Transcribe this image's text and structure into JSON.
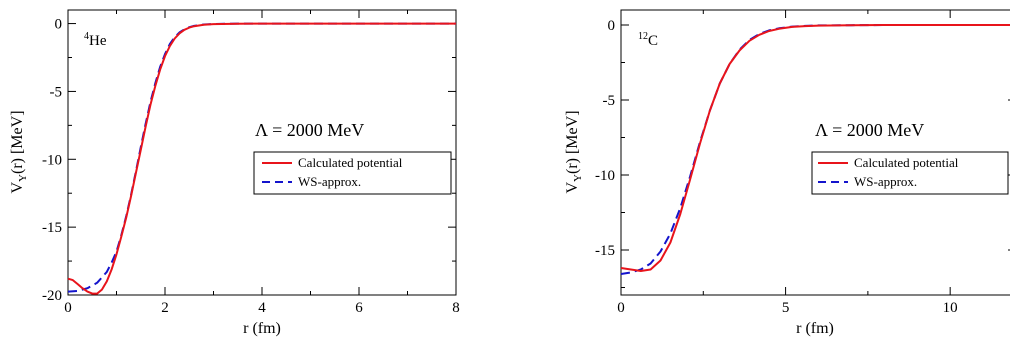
{
  "chart_data": [
    {
      "type": "line",
      "nucleus_mass": "4",
      "nucleus_symbol": "He",
      "annotation": "Λ = 2000 MeV",
      "xlabel": "r (fm)",
      "ylabel_parts": {
        "base": "V",
        "sub": "Y",
        "rest": "(r)  [MeV]"
      },
      "xlim": [
        0,
        8
      ],
      "ylim": [
        -20,
        1
      ],
      "xticks": [
        0,
        2,
        4,
        6,
        8
      ],
      "yticks": [
        0,
        -5,
        -10,
        -15,
        -20
      ],
      "legend_position": "center-right",
      "series": [
        {
          "name": "Calculated potential",
          "color": "#e8141b",
          "dash": "solid",
          "x": [
            0,
            0.1,
            0.2,
            0.3,
            0.4,
            0.5,
            0.6,
            0.7,
            0.8,
            0.9,
            1.0,
            1.1,
            1.2,
            1.3,
            1.4,
            1.5,
            1.6,
            1.7,
            1.8,
            1.9,
            2.0,
            2.1,
            2.2,
            2.3,
            2.4,
            2.5,
            2.6,
            2.8,
            3.0,
            3.5,
            4.0,
            5.0,
            6.0,
            7.0,
            8.0
          ],
          "y": [
            -18.8,
            -18.9,
            -19.2,
            -19.5,
            -19.75,
            -19.9,
            -19.9,
            -19.6,
            -19.0,
            -18.1,
            -17.0,
            -15.7,
            -14.3,
            -12.7,
            -11.0,
            -9.3,
            -7.6,
            -6.0,
            -4.6,
            -3.4,
            -2.4,
            -1.65,
            -1.1,
            -0.72,
            -0.46,
            -0.3,
            -0.19,
            -0.08,
            -0.04,
            -0.01,
            0,
            0,
            0,
            0,
            0
          ]
        },
        {
          "name": "WS-approx.",
          "color": "#1414cc",
          "dash": "dashed",
          "x": [
            0,
            0.2,
            0.4,
            0.6,
            0.8,
            0.9,
            1.0,
            1.1,
            1.2,
            1.3,
            1.4,
            1.5,
            1.6,
            1.7,
            1.8,
            1.9,
            2.0,
            2.1,
            2.2,
            2.3,
            2.4,
            2.5,
            2.6,
            2.8,
            3.0,
            3.5,
            4.0,
            5.0,
            6.0,
            7.0,
            8.0
          ],
          "y": [
            -19.75,
            -19.7,
            -19.5,
            -19.1,
            -18.3,
            -17.6,
            -16.8,
            -15.6,
            -14.2,
            -12.6,
            -10.9,
            -9.1,
            -7.4,
            -5.8,
            -4.4,
            -3.2,
            -2.25,
            -1.5,
            -1.0,
            -0.65,
            -0.42,
            -0.27,
            -0.17,
            -0.07,
            -0.03,
            -0.005,
            0,
            0,
            0,
            0,
            0
          ]
        }
      ]
    },
    {
      "type": "line",
      "nucleus_mass": "12",
      "nucleus_symbol": "C",
      "annotation": "Λ = 2000 MeV",
      "xlabel": "r (fm)",
      "ylabel_parts": {
        "base": "V",
        "sub": "Y",
        "rest": "(r)  [MeV]"
      },
      "xlim": [
        0,
        12
      ],
      "ylim": [
        -18,
        1
      ],
      "xticks": [
        0,
        5,
        10
      ],
      "yticks": [
        0,
        -5,
        -10,
        -15
      ],
      "legend_position": "center-right",
      "series": [
        {
          "name": "Calculated potential",
          "color": "#e8141b",
          "dash": "solid",
          "x": [
            0,
            0.3,
            0.6,
            0.9,
            1.2,
            1.5,
            1.8,
            2.1,
            2.4,
            2.7,
            3.0,
            3.3,
            3.6,
            3.9,
            4.2,
            4.5,
            4.8,
            5.2,
            5.6,
            6.0,
            7.0,
            8.0,
            10.0,
            12.0
          ],
          "y": [
            -16.2,
            -16.3,
            -16.4,
            -16.3,
            -15.7,
            -14.5,
            -12.6,
            -10.3,
            -7.9,
            -5.7,
            -3.9,
            -2.6,
            -1.7,
            -1.05,
            -0.65,
            -0.4,
            -0.25,
            -0.13,
            -0.07,
            -0.04,
            -0.01,
            0,
            0,
            0
          ]
        },
        {
          "name": "WS-approx.",
          "color": "#1414cc",
          "dash": "dashed",
          "x": [
            0,
            0.3,
            0.6,
            0.9,
            1.2,
            1.5,
            1.8,
            2.1,
            2.4,
            2.7,
            3.0,
            3.3,
            3.6,
            3.9,
            4.2,
            4.5,
            4.8,
            5.2,
            5.6,
            6.0,
            7.0,
            8.0,
            10.0,
            12.0
          ],
          "y": [
            -16.6,
            -16.5,
            -16.3,
            -15.9,
            -15.1,
            -13.9,
            -12.2,
            -10.1,
            -7.8,
            -5.7,
            -3.9,
            -2.6,
            -1.65,
            -1.0,
            -0.6,
            -0.36,
            -0.22,
            -0.11,
            -0.06,
            -0.03,
            -0.01,
            0,
            0,
            0
          ]
        }
      ]
    }
  ]
}
